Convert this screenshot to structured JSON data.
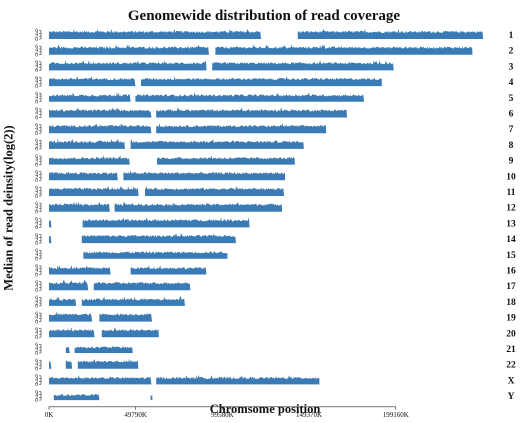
{
  "chart_data": {
    "type": "area",
    "title": "Genomewide distribution of read coverage",
    "xlabel": "Chromsome position",
    "ylabel": "Median of read deinsity(log(2))",
    "xlim": [
      0,
      249250000
    ],
    "ylim": [
      0,
      7
    ],
    "y_ticks": [
      "0",
      "2",
      "4",
      "6"
    ],
    "x_ticks": [
      {
        "value": 0,
        "label": "0K"
      },
      {
        "value": 49790000,
        "label": "49790K"
      },
      {
        "value": 99580000,
        "label": "99580K"
      },
      {
        "value": 149370000,
        "label": "149370K"
      },
      {
        "value": 199160000,
        "label": "199160K"
      }
    ],
    "color": "#3a7ab5",
    "series": [
      {
        "name": "1",
        "length": 249250000,
        "typical_level": 5.0,
        "gaps": [
          [
            121500000,
            142500000
          ]
        ]
      },
      {
        "name": "2",
        "length": 243200000,
        "typical_level": 5.0,
        "gaps": [
          [
            91500000,
            95500000
          ]
        ]
      },
      {
        "name": "3",
        "length": 198000000,
        "typical_level": 5.0,
        "gaps": [
          [
            90500000,
            93500000
          ]
        ]
      },
      {
        "name": "4",
        "length": 191150000,
        "typical_level": 5.0,
        "gaps": [
          [
            49500000,
            52500000
          ]
        ]
      },
      {
        "name": "5",
        "length": 180900000,
        "typical_level": 4.5,
        "gaps": [
          [
            46500000,
            49500000
          ]
        ]
      },
      {
        "name": "6",
        "length": 171100000,
        "typical_level": 5.0,
        "gaps": [
          [
            58500000,
            61500000
          ]
        ]
      },
      {
        "name": "7",
        "length": 159150000,
        "typical_level": 5.0,
        "gaps": [
          [
            58500000,
            61500000
          ]
        ]
      },
      {
        "name": "8",
        "length": 146350000,
        "typical_level": 5.0,
        "gaps": [
          [
            43500000,
            46500000
          ]
        ]
      },
      {
        "name": "9",
        "length": 141200000,
        "typical_level": 4.5,
        "gaps": [
          [
            46000000,
            62000000
          ]
        ]
      },
      {
        "name": "10",
        "length": 135550000,
        "typical_level": 5.0,
        "gaps": [
          [
            39500000,
            42500000
          ]
        ]
      },
      {
        "name": "11",
        "length": 135000000,
        "typical_level": 5.0,
        "gaps": [
          [
            51000000,
            55000000
          ]
        ]
      },
      {
        "name": "12",
        "length": 133850000,
        "typical_level": 5.0,
        "gaps": [
          [
            34500000,
            37500000
          ]
        ]
      },
      {
        "name": "13",
        "length": 115150000,
        "typical_level": 5.0,
        "gaps": [
          [
            1000000,
            19000000
          ]
        ]
      },
      {
        "name": "14",
        "length": 107350000,
        "typical_level": 5.0,
        "gaps": [
          [
            1000000,
            18500000
          ]
        ]
      },
      {
        "name": "15",
        "length": 102500000,
        "typical_level": 4.5,
        "gaps": [
          [
            0,
            19500000
          ]
        ]
      },
      {
        "name": "16",
        "length": 90350000,
        "typical_level": 4.5,
        "gaps": [
          [
            35000000,
            46500000
          ]
        ]
      },
      {
        "name": "17",
        "length": 81200000,
        "typical_level": 5.0,
        "gaps": [
          [
            22500000,
            25500000
          ]
        ]
      },
      {
        "name": "18",
        "length": 78100000,
        "typical_level": 4.5,
        "gaps": [
          [
            15500000,
            18500000
          ]
        ]
      },
      {
        "name": "19",
        "length": 59150000,
        "typical_level": 5.0,
        "gaps": [
          [
            24500000,
            28500000
          ]
        ]
      },
      {
        "name": "20",
        "length": 63050000,
        "typical_level": 5.0,
        "gaps": [
          [
            26000000,
            30000000
          ]
        ]
      },
      {
        "name": "21",
        "length": 48150000,
        "typical_level": 4.0,
        "gaps": [
          [
            0,
            9500000
          ],
          [
            11500000,
            14500000
          ]
        ]
      },
      {
        "name": "22",
        "length": 51300000,
        "typical_level": 5.0,
        "gaps": [
          [
            1000000,
            9500000
          ],
          [
            13000000,
            16500000
          ]
        ]
      },
      {
        "name": "X",
        "length": 155300000,
        "typical_level": 4.5,
        "gaps": [
          [
            58500000,
            61500000
          ]
        ]
      },
      {
        "name": "Y",
        "length": 59400000,
        "typical_level": 3.5,
        "gaps": [
          [
            0,
            2500000
          ],
          [
            28500000,
            58000000
          ]
        ]
      }
    ]
  }
}
